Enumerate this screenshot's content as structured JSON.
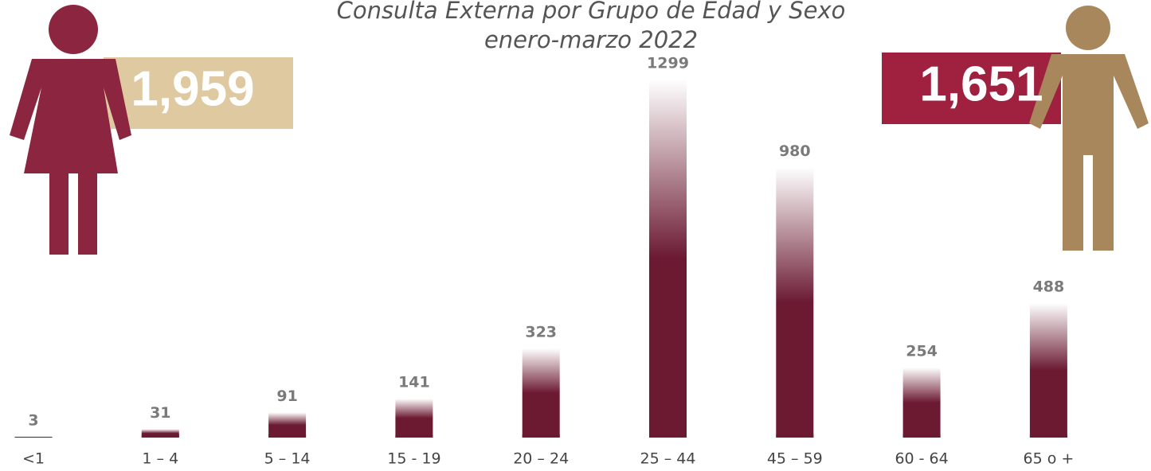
{
  "chart_data": {
    "type": "bar",
    "title": "Consulta Externa por Grupo de Edad y Sexo",
    "subtitle": "enero-marzo 2022",
    "categories": [
      "<1",
      "1 – 4",
      "5 – 14",
      "15 - 19",
      "20 – 24",
      "25 – 44",
      "45 – 59",
      "60 - 64",
      "65 o +"
    ],
    "values": [
      3,
      31,
      91,
      141,
      323,
      1299,
      980,
      254,
      488
    ],
    "color": "#6b1a32",
    "annotations": [
      {
        "value": 1959,
        "label": "1,959"
      },
      {
        "value": 1651,
        "label": "1,651"
      }
    ]
  }
}
